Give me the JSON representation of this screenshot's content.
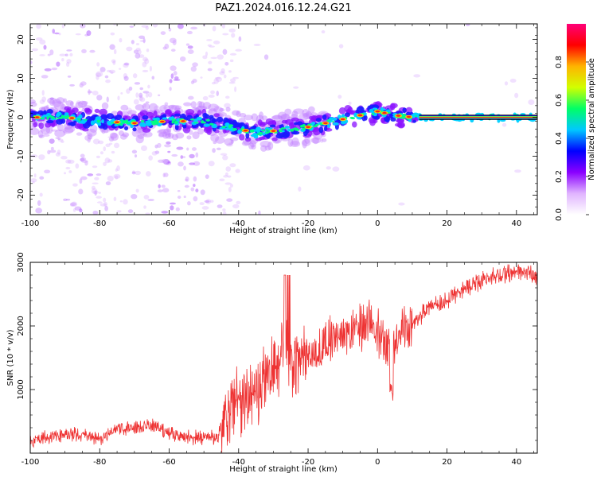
{
  "figure": {
    "title": "PAZ1.2024.016.12.24.G21"
  },
  "chart_data": [
    {
      "type": "heatmap",
      "xlabel": "Height of straight line (km)",
      "ylabel": "Frequency (Hz)",
      "xlim": [
        -100,
        46
      ],
      "ylim": [
        -25,
        24
      ],
      "x_ticks": [
        -100,
        -80,
        -60,
        -40,
        -20,
        0,
        20,
        40
      ],
      "y_ticks": [
        -20,
        -10,
        0,
        10,
        20
      ],
      "colorbar": {
        "label": "Normalized spectral amplitude",
        "range": [
          0,
          1
        ],
        "ticks": [
          "0.0",
          "0.2",
          "0.4",
          "0.6",
          "0.8"
        ],
        "colors": [
          "#ffffff",
          "#e0b4ff",
          "#8a00ff",
          "#0000ff",
          "#00c8ff",
          "#00ff66",
          "#d2ff00",
          "#ffb400",
          "#ff0000",
          "#ff0078"
        ]
      },
      "ridge": {
        "description_points": [
          [
            -100,
            0
          ],
          [
            -90,
            0
          ],
          [
            -80,
            -1
          ],
          [
            -70,
            -1.5
          ],
          [
            -60,
            -1
          ],
          [
            -50,
            -1
          ],
          [
            -45,
            -2
          ],
          [
            -40,
            -3
          ],
          [
            -35,
            -4
          ],
          [
            -30,
            -3.5
          ],
          [
            -25,
            -3
          ],
          [
            -20,
            -2.5
          ],
          [
            -15,
            -1.5
          ],
          [
            -10,
            -0.5
          ],
          [
            -5,
            0.5
          ],
          [
            0,
            1.5
          ],
          [
            5,
            0.5
          ],
          [
            10,
            0
          ],
          [
            46,
            0
          ]
        ]
      }
    },
    {
      "type": "line",
      "xlabel": "Height of straight line (km)",
      "ylabel": "SNR (10 * v/v)",
      "xlim": [
        -100,
        46
      ],
      "ylim": [
        0,
        3000
      ],
      "x_ticks": [
        -100,
        -80,
        -60,
        -40,
        -20,
        0,
        20,
        40
      ],
      "y_ticks": [
        1000,
        2000,
        3000
      ],
      "color": "#ee3333",
      "series": [
        {
          "x": [
            -100,
            -95,
            -90,
            -85,
            -80,
            -75,
            -70,
            -65,
            -60,
            -55,
            -50,
            -46,
            -44,
            -40,
            -35,
            -30,
            -27,
            -25,
            -20,
            -15,
            -10,
            -5,
            -1,
            4,
            5,
            10,
            15,
            20,
            25,
            30,
            35,
            40,
            46
          ],
          "values": [
            200,
            250,
            300,
            280,
            220,
            400,
            400,
            450,
            320,
            250,
            240,
            250,
            600,
            800,
            1000,
            1300,
            1600,
            1400,
            1500,
            1700,
            1900,
            2000,
            2000,
            1700,
            1800,
            2000,
            2300,
            2400,
            2600,
            2700,
            2800,
            2850,
            2800
          ]
        }
      ]
    }
  ]
}
